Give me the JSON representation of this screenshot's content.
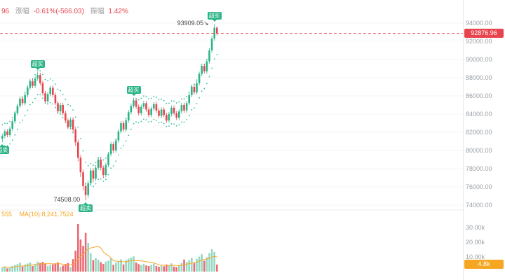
{
  "header": {
    "price_fragment": "96",
    "change_label": "涨幅",
    "change_value": "-0.61%(-566.03)",
    "amplitude_label": "振幅",
    "amplitude_value": "1.42%"
  },
  "volume_header": {
    "vol_fragment": "555",
    "ma_label": "MA(10):8,241.7524"
  },
  "axis": {
    "current_price_label": "92876.96",
    "current_volume_label": "4.8k",
    "price_ticks": [
      {
        "label": "94000.00",
        "value": 94000
      },
      {
        "label": "92000.00",
        "value": 92000
      },
      {
        "label": "90000.00",
        "value": 90000
      },
      {
        "label": "88000.00",
        "value": 88000
      },
      {
        "label": "86000.00",
        "value": 86000
      },
      {
        "label": "84000.00",
        "value": 84000
      },
      {
        "label": "82000.00",
        "value": 82000
      },
      {
        "label": "80000.00",
        "value": 80000
      },
      {
        "label": "78000.00",
        "value": 78000
      },
      {
        "label": "76000.00",
        "value": 76000
      },
      {
        "label": "74000.00",
        "value": 74000
      }
    ],
    "volume_ticks": [
      {
        "label": "30.00k",
        "value": 30000
      },
      {
        "label": "20.00k",
        "value": 20000
      },
      {
        "label": "10.00k",
        "value": 10000
      }
    ]
  },
  "colors": {
    "up": "#2bb486",
    "down": "#e8444e",
    "envelope": "#2fbfa0",
    "ma": "#f5a623",
    "grid": "#f6f6f6",
    "separator": "#ececec",
    "axis_text": "#9aa0a6"
  },
  "chart_data": {
    "type": "candlestick",
    "title": "",
    "legend_position": "none",
    "grid": false,
    "price_axis_range": [
      74000,
      94000
    ],
    "volume_axis_range": [
      0,
      33000
    ],
    "current_price": 92876.96,
    "current_volume": 4800,
    "high_label": "93909.05",
    "low_label": "74508.00",
    "candles": [
      [
        81300,
        81850,
        80900,
        81600
      ],
      [
        81600,
        82350,
        81350,
        82100
      ],
      [
        82100,
        82350,
        81450,
        81700
      ],
      [
        81700,
        82650,
        81450,
        82400
      ],
      [
        82400,
        83450,
        82150,
        83200
      ],
      [
        83200,
        84350,
        82950,
        84100
      ],
      [
        84100,
        85150,
        83850,
        84900
      ],
      [
        84900,
        85950,
        84650,
        85700
      ],
      [
        85700,
        85950,
        84950,
        85200
      ],
      [
        85200,
        86350,
        84950,
        86100
      ],
      [
        86100,
        87150,
        85850,
        86900
      ],
      [
        86900,
        87850,
        86650,
        87600
      ],
      [
        87600,
        87850,
        86850,
        87100
      ],
      [
        87100,
        88150,
        86850,
        87900
      ],
      [
        87900,
        88600,
        87650,
        88300
      ],
      [
        88300,
        88550,
        87150,
        87400
      ],
      [
        87400,
        87650,
        86050,
        86300
      ],
      [
        86300,
        86550,
        85150,
        85400
      ],
      [
        85400,
        86450,
        85150,
        86200
      ],
      [
        86200,
        87150,
        85950,
        86900
      ],
      [
        86900,
        87150,
        85850,
        86100
      ],
      [
        86100,
        86350,
        84950,
        85200
      ],
      [
        85200,
        85450,
        84050,
        84300
      ],
      [
        84300,
        85250,
        84050,
        85000
      ],
      [
        85000,
        85250,
        83850,
        84100
      ],
      [
        84100,
        84350,
        83050,
        83300
      ],
      [
        83300,
        83550,
        82350,
        82600
      ],
      [
        82600,
        83650,
        82350,
        83400
      ],
      [
        83400,
        83650,
        82000,
        82300
      ],
      [
        82300,
        82600,
        80500,
        80900
      ],
      [
        80900,
        81200,
        78800,
        79200
      ],
      [
        79200,
        79500,
        77100,
        77600
      ],
      [
        77600,
        77900,
        75600,
        76100
      ],
      [
        76100,
        76400,
        74508,
        75100
      ],
      [
        75100,
        76700,
        74800,
        76400
      ],
      [
        76400,
        78100,
        76150,
        77800
      ],
      [
        77800,
        78050,
        76500,
        76900
      ],
      [
        76900,
        78400,
        76650,
        78100
      ],
      [
        78100,
        79300,
        77850,
        79000
      ],
      [
        79000,
        79250,
        77800,
        78100
      ],
      [
        78100,
        78350,
        76950,
        77300
      ],
      [
        77300,
        78650,
        77050,
        78400
      ],
      [
        78400,
        79850,
        78150,
        79600
      ],
      [
        79600,
        80950,
        79350,
        80700
      ],
      [
        80700,
        80950,
        79700,
        80000
      ],
      [
        80000,
        81350,
        79750,
        81100
      ],
      [
        81100,
        82350,
        80850,
        82100
      ],
      [
        82100,
        83250,
        81850,
        83000
      ],
      [
        83000,
        83250,
        82050,
        82300
      ],
      [
        82300,
        83550,
        82050,
        83300
      ],
      [
        83300,
        84450,
        83050,
        84200
      ],
      [
        84200,
        85150,
        83950,
        84900
      ],
      [
        84900,
        85800,
        84650,
        85500
      ],
      [
        85500,
        85750,
        84550,
        84800
      ],
      [
        84800,
        85050,
        83850,
        84100
      ],
      [
        84100,
        85050,
        83850,
        84800
      ],
      [
        84800,
        85450,
        84550,
        85200
      ],
      [
        85200,
        85450,
        84250,
        84500
      ],
      [
        84500,
        84750,
        83650,
        83900
      ],
      [
        83900,
        84850,
        83650,
        84600
      ],
      [
        84600,
        85350,
        84350,
        85100
      ],
      [
        85100,
        85350,
        84150,
        84400
      ],
      [
        84400,
        84650,
        83550,
        83800
      ],
      [
        83800,
        84750,
        83550,
        84500
      ],
      [
        84500,
        84750,
        83650,
        83900
      ],
      [
        83900,
        84150,
        83050,
        83300
      ],
      [
        83300,
        84250,
        83050,
        84000
      ],
      [
        84000,
        84950,
        83750,
        84700
      ],
      [
        84700,
        84950,
        83850,
        84100
      ],
      [
        84100,
        84350,
        83350,
        83600
      ],
      [
        83600,
        84550,
        83350,
        84300
      ],
      [
        84300,
        85250,
        84050,
        85000
      ],
      [
        85000,
        85250,
        84150,
        84400
      ],
      [
        84400,
        85450,
        84150,
        85200
      ],
      [
        85200,
        86350,
        84950,
        86100
      ],
      [
        86100,
        87250,
        85850,
        87000
      ],
      [
        87000,
        87250,
        86150,
        86400
      ],
      [
        86400,
        87650,
        86150,
        87400
      ],
      [
        87400,
        88650,
        87150,
        88400
      ],
      [
        88400,
        89550,
        88150,
        89300
      ],
      [
        89300,
        89550,
        88450,
        88700
      ],
      [
        88700,
        90050,
        88450,
        89800
      ],
      [
        89800,
        91250,
        89550,
        91000
      ],
      [
        91000,
        92550,
        90750,
        92300
      ],
      [
        92300,
        93909.05,
        92050,
        93500
      ],
      [
        93500,
        93650,
        92650,
        92876.96
      ]
    ],
    "volumes": [
      2800,
      3500,
      2200,
      2600,
      3900,
      4400,
      5200,
      6100,
      3400,
      4800,
      5500,
      6200,
      3800,
      5100,
      6800,
      5900,
      6600,
      5400,
      3700,
      4500,
      4900,
      5600,
      6300,
      3200,
      4100,
      5000,
      5800,
      3000,
      8500,
      14200,
      32400,
      21800,
      17500,
      26300,
      19600,
      12400,
      7800,
      9200,
      8100,
      6400,
      5200,
      6800,
      7500,
      8900,
      4600,
      6100,
      7200,
      8400,
      4900,
      7700,
      8800,
      9600,
      10400,
      6200,
      5100,
      4400,
      5300,
      4200,
      3800,
      4600,
      5400,
      3900,
      3300,
      4100,
      3600,
      4800,
      4200,
      5600,
      3400,
      3100,
      4400,
      5900,
      8200,
      6600,
      7800,
      9400,
      5700,
      8600,
      10200,
      11800,
      7400,
      9800,
      12600,
      15200,
      13400,
      4800
    ],
    "annotations": [
      {
        "type": "badge",
        "label": "超卖",
        "candle_index": 0,
        "anchor": "low",
        "direction": "below"
      },
      {
        "type": "badge",
        "label": "超买",
        "candle_index": 14,
        "anchor": "high",
        "direction": "above"
      },
      {
        "type": "badge",
        "label": "超买",
        "candle_index": 52,
        "anchor": "high",
        "direction": "above"
      },
      {
        "type": "badge",
        "label": "超买",
        "candle_index": 84,
        "anchor": "high",
        "direction": "above"
      },
      {
        "type": "badge",
        "label": "超卖",
        "candle_index": 33,
        "anchor": "low",
        "direction": "below"
      },
      {
        "type": "price_label",
        "text": "93909.05",
        "arrow": "↘",
        "candle_index": 84,
        "anchor": "high"
      },
      {
        "type": "price_label",
        "text": "74508.00",
        "arrow": "",
        "candle_index": 33,
        "anchor": "low"
      }
    ]
  }
}
